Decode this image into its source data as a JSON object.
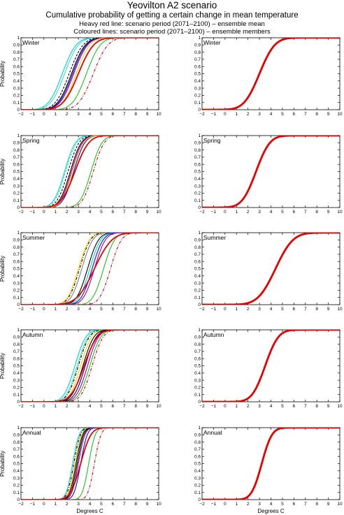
{
  "header": {
    "title": "Yeovilton A2 scenario",
    "subtitle": "Cumulative probability of getting a certain change in mean temperature",
    "note1": "Heavy red line: scenario period (2071–2100) – ensemble mean",
    "note2": "Coloured lines: scenario period (2071–2100) – ensemble members"
  },
  "colors": {
    "mean": "#e60000",
    "members": [
      "#000000",
      "#00d0d0",
      "#40e0c0",
      "#20c020",
      "#ffd000",
      "#a000a0",
      "#1010d0",
      "#cc0000",
      "#000080",
      "#808080"
    ]
  },
  "chart_data": {
    "type": "line",
    "x_ticks": [
      -2,
      -1,
      0,
      1,
      2,
      3,
      4,
      5,
      6,
      7,
      8,
      9,
      10
    ],
    "y_ticks": [
      0,
      0.1,
      0.2,
      0.3,
      0.4,
      0.5,
      0.6,
      0.7,
      0.8,
      0.9,
      1
    ],
    "xlim": [
      -2,
      10
    ],
    "ylim": [
      0,
      1
    ],
    "ylabel": "Probability",
    "xlabel": "Degrees C",
    "rows": [
      {
        "season": "Winter",
        "mean_cdf": {
          "mu": 3.0,
          "sigma": 1.05
        },
        "members": [
          {
            "mu": 1.6,
            "sigma": 0.95,
            "color": "#00d0d0",
            "dash": ""
          },
          {
            "mu": 1.8,
            "sigma": 0.95,
            "color": "#40e0c0",
            "dash": ""
          },
          {
            "mu": 2.2,
            "sigma": 0.95,
            "color": "#000000",
            "dash": "3,2"
          },
          {
            "mu": 2.4,
            "sigma": 0.95,
            "color": "#000000",
            "dash": ""
          },
          {
            "mu": 2.5,
            "sigma": 0.95,
            "color": "#1010d0",
            "dash": ""
          },
          {
            "mu": 2.6,
            "sigma": 0.95,
            "color": "#a000a0",
            "dash": ""
          },
          {
            "mu": 2.8,
            "sigma": 0.95,
            "color": "#ffd000",
            "dash": ""
          },
          {
            "mu": 3.7,
            "sigma": 0.95,
            "color": "#20c020",
            "dash": ""
          },
          {
            "mu": 4.3,
            "sigma": 1.0,
            "color": "#cc0000",
            "dash": "4,2,1,2"
          }
        ]
      },
      {
        "season": "Spring",
        "mean_cdf": {
          "mu": 2.7,
          "sigma": 0.95
        },
        "members": [
          {
            "mu": 1.8,
            "sigma": 0.75,
            "color": "#00d0d0",
            "dash": ""
          },
          {
            "mu": 1.9,
            "sigma": 0.75,
            "color": "#40e0c0",
            "dash": "3,2"
          },
          {
            "mu": 2.1,
            "sigma": 0.75,
            "color": "#000000",
            "dash": "3,2"
          },
          {
            "mu": 2.3,
            "sigma": 0.75,
            "color": "#000000",
            "dash": ""
          },
          {
            "mu": 2.4,
            "sigma": 0.75,
            "color": "#a000a0",
            "dash": ""
          },
          {
            "mu": 2.6,
            "sigma": 0.75,
            "color": "#1010d0",
            "dash": ""
          },
          {
            "mu": 2.5,
            "sigma": 0.75,
            "color": "#ffd000",
            "dash": ""
          },
          {
            "mu": 4.1,
            "sigma": 0.75,
            "color": "#20c020",
            "dash": ""
          },
          {
            "mu": 4.3,
            "sigma": 0.75,
            "color": "#cc0000",
            "dash": "4,2,1,2"
          }
        ]
      },
      {
        "season": "Summer",
        "mean_cdf": {
          "mu": 4.4,
          "sigma": 1.2
        },
        "members": [
          {
            "mu": 3.0,
            "sigma": 0.75,
            "color": "#ffd000",
            "dash": ""
          },
          {
            "mu": 3.1,
            "sigma": 0.75,
            "color": "#000000",
            "dash": "4,2,1,2"
          },
          {
            "mu": 3.3,
            "sigma": 0.75,
            "color": "#808080",
            "dash": ""
          },
          {
            "mu": 3.8,
            "sigma": 0.75,
            "color": "#000000",
            "dash": ""
          },
          {
            "mu": 4.0,
            "sigma": 0.75,
            "color": "#00d0d0",
            "dash": ""
          },
          {
            "mu": 4.2,
            "sigma": 0.75,
            "color": "#1010d0",
            "dash": ""
          },
          {
            "mu": 4.4,
            "sigma": 0.75,
            "color": "#a000a0",
            "dash": ""
          },
          {
            "mu": 5.2,
            "sigma": 0.75,
            "color": "#20c020",
            "dash": ""
          },
          {
            "mu": 5.8,
            "sigma": 0.75,
            "color": "#cc0000",
            "dash": "4,2,1,2"
          }
        ]
      },
      {
        "season": "Autumn",
        "mean_cdf": {
          "mu": 3.5,
          "sigma": 0.9
        },
        "members": [
          {
            "mu": 2.7,
            "sigma": 0.75,
            "color": "#00d0d0",
            "dash": ""
          },
          {
            "mu": 2.9,
            "sigma": 0.75,
            "color": "#40e0c0",
            "dash": ""
          },
          {
            "mu": 3.0,
            "sigma": 0.75,
            "color": "#000000",
            "dash": "4,2,1,2"
          },
          {
            "mu": 3.2,
            "sigma": 0.75,
            "color": "#ffd000",
            "dash": ""
          },
          {
            "mu": 3.4,
            "sigma": 0.75,
            "color": "#000000",
            "dash": ""
          },
          {
            "mu": 3.6,
            "sigma": 0.75,
            "color": "#000080",
            "dash": ""
          },
          {
            "mu": 3.8,
            "sigma": 0.75,
            "color": "#a000a0",
            "dash": ""
          },
          {
            "mu": 4.0,
            "sigma": 0.75,
            "color": "#20c020",
            "dash": ""
          },
          {
            "mu": 4.2,
            "sigma": 0.75,
            "color": "#cc0000",
            "dash": "4,2,1,2"
          }
        ]
      },
      {
        "season": "Annual",
        "mean_cdf": {
          "mu": 3.2,
          "sigma": 0.7
        },
        "members": [
          {
            "mu": 2.5,
            "sigma": 0.45,
            "color": "#00d0d0",
            "dash": ""
          },
          {
            "mu": 2.6,
            "sigma": 0.45,
            "color": "#000000",
            "dash": "4,2,1,2"
          },
          {
            "mu": 2.7,
            "sigma": 0.45,
            "color": "#ffd000",
            "dash": ""
          },
          {
            "mu": 2.8,
            "sigma": 0.45,
            "color": "#000000",
            "dash": ""
          },
          {
            "mu": 2.9,
            "sigma": 0.45,
            "color": "#000000",
            "dash": ""
          },
          {
            "mu": 3.0,
            "sigma": 0.45,
            "color": "#a000a0",
            "dash": ""
          },
          {
            "mu": 3.2,
            "sigma": 0.45,
            "color": "#1010d0",
            "dash": ""
          },
          {
            "mu": 3.9,
            "sigma": 0.45,
            "color": "#20c020",
            "dash": ""
          },
          {
            "mu": 4.4,
            "sigma": 0.45,
            "color": "#cc0000",
            "dash": "4,2,1,2"
          }
        ]
      }
    ]
  }
}
